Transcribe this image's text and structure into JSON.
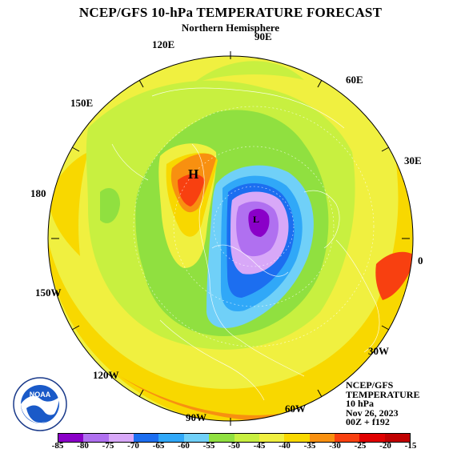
{
  "title": "NCEP/GFS 10-hPa TEMPERATURE FORECAST",
  "subtitle": "Northern Hemisphere",
  "longitude_labels": [
    {
      "text": "90E",
      "icon": "lon-90e"
    },
    {
      "text": "60E",
      "icon": "lon-60e"
    },
    {
      "text": "30E",
      "icon": "lon-30e"
    },
    {
      "text": "0",
      "icon": "lon-0"
    },
    {
      "text": "30W",
      "icon": "lon-30w"
    },
    {
      "text": "60W",
      "icon": "lon-60w"
    },
    {
      "text": "90W",
      "icon": "lon-90w"
    },
    {
      "text": "120W",
      "icon": "lon-120w"
    },
    {
      "text": "150W",
      "icon": "lon-150w"
    },
    {
      "text": "180",
      "icon": "lon-180"
    },
    {
      "text": "150E",
      "icon": "lon-150e"
    },
    {
      "text": "120E",
      "icon": "lon-120e"
    }
  ],
  "high_marker": "H",
  "low_marker": "L",
  "info": {
    "line1": "NCEP/GFS",
    "line2": "TEMPERATURE",
    "line3": "10 hPa",
    "line4": "Nov 26, 2023",
    "line5": "00Z + f192"
  },
  "logo_text": "NOAA",
  "colorbar": {
    "labels": [
      "-85",
      "-80",
      "-75",
      "-70",
      "-65",
      "-60",
      "-55",
      "-50",
      "-45",
      "-40",
      "-35",
      "-30",
      "-25",
      "-20",
      "-15"
    ],
    "colors": [
      "#8a00c8",
      "#b070f0",
      "#d8a8f8",
      "#1c6ef0",
      "#30a8f8",
      "#70d0f8",
      "#90e040",
      "#c8f040",
      "#f0f040",
      "#f8d800",
      "#f89010",
      "#f84010",
      "#e00000",
      "#c00000"
    ]
  },
  "colors": {
    "background": "#ffffff",
    "map_border": "#000000",
    "yellow": "#f0f040",
    "light_green": "#c8f040",
    "green": "#90e040",
    "orange": "#f8d800",
    "deep_orange": "#f89010",
    "red_orange": "#f84010",
    "light_blue": "#70d0f8",
    "mid_blue": "#30a8f8",
    "blue": "#1c6ef0",
    "light_purple": "#d8a8f8",
    "purple": "#b070f0",
    "dark_purple": "#8a00c8"
  }
}
